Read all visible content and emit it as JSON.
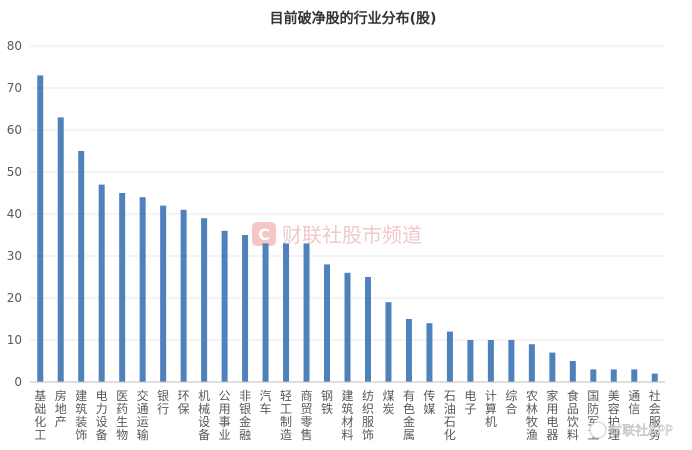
{
  "chart_data": {
    "type": "bar",
    "title": "目前破净股的行业分布(股)",
    "ylim": [
      0,
      80
    ],
    "yticks": [
      0,
      10,
      20,
      30,
      40,
      50,
      60,
      70,
      80
    ],
    "grid": true,
    "color": "#4f81bd",
    "categories": [
      "基础化工",
      "房地产",
      "建筑装饰",
      "电力设备",
      "医药生物",
      "交通运输",
      "银行",
      "环保",
      "机械设备",
      "公用事业",
      "非银金融",
      "汽车",
      "轻工制造",
      "商贸零售",
      "钢铁",
      "建筑材料",
      "纺织服饰",
      "煤炭",
      "有色金属",
      "传媒",
      "石油石化",
      "电子",
      "计算机",
      "综合",
      "农林牧渔",
      "家用电器",
      "食品饮料",
      "国防军工",
      "美容护理",
      "通信",
      "社会服务"
    ],
    "values": [
      73,
      63,
      55,
      47,
      45,
      44,
      42,
      41,
      39,
      36,
      35,
      33,
      33,
      33,
      28,
      26,
      25,
      19,
      15,
      14,
      12,
      10,
      10,
      10,
      9,
      7,
      5,
      3,
      3,
      3,
      2
    ]
  },
  "watermark": {
    "mark": "C",
    "text": "财联社股市频道"
  },
  "brand": {
    "text": "财联社APP"
  }
}
